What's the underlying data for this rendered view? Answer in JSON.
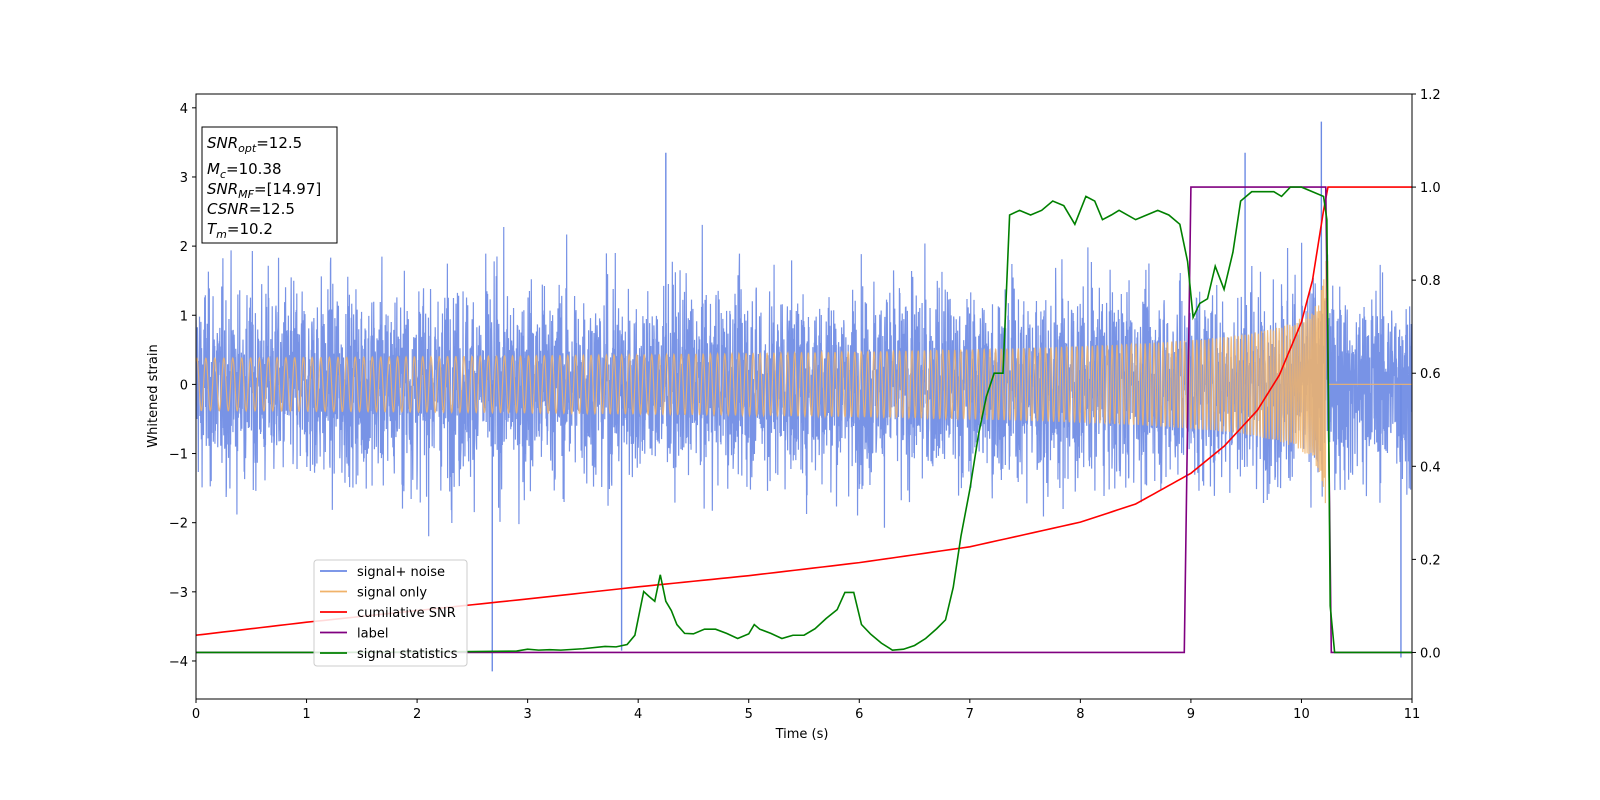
{
  "chart_data": {
    "type": "line",
    "xlabel": "Time (s)",
    "ylabel": "Whitened strain",
    "xlim": [
      0,
      11
    ],
    "ylim": [
      -4.55,
      4.2
    ],
    "y2lim": [
      -0.1,
      1.2
    ],
    "x_ticks": [
      "0",
      "1",
      "2",
      "3",
      "4",
      "5",
      "6",
      "7",
      "8",
      "9",
      "10",
      "11"
    ],
    "y_ticks": [
      "−4",
      "−3",
      "−2",
      "−1",
      "0",
      "1",
      "2",
      "3",
      "4"
    ],
    "y2_ticks": [
      "0.0",
      "0.2",
      "0.4",
      "0.6",
      "0.8",
      "1.0",
      "1.2"
    ],
    "grid": false,
    "legend_position": "lower-left",
    "info_box": [
      {
        "symbol": "SNR",
        "sub": "opt",
        "value": "=12.5"
      },
      {
        "symbol": "M",
        "sub": "c",
        "value": "=10.38"
      },
      {
        "symbol": "SNR",
        "sub": "MF",
        "value": "=[14.97]"
      },
      {
        "symbol": "CSNR",
        "sub": "",
        "value": "=12.5"
      },
      {
        "symbol": "T",
        "sub": "m",
        "value": "=10.2"
      }
    ],
    "series": [
      {
        "name": "signal+ noise",
        "axis": "left",
        "color": "#6c8ae4",
        "kind": "noise",
        "sigma": 0.95,
        "span": [
          0,
          11
        ],
        "peaks": [
          [
            10.18,
            3.8
          ],
          [
            2.68,
            -4.15
          ],
          [
            10.9,
            -3.95
          ],
          [
            3.85,
            -3.85
          ],
          [
            9.49,
            3.35
          ],
          [
            4.25,
            3.35
          ]
        ]
      },
      {
        "name": "signal only",
        "axis": "left",
        "color": "#f0b36a",
        "kind": "chirp",
        "merger_time": 10.22,
        "end_time": 10.24,
        "peak_amplitude": 2.0
      },
      {
        "name": "cumilative SNR",
        "axis": "right",
        "color": "#ff0000",
        "x": [
          0,
          1,
          2,
          3,
          4,
          5,
          6,
          7,
          8,
          8.5,
          9,
          9.3,
          9.6,
          9.8,
          10,
          10.1,
          10.2,
          10.24,
          11
        ],
        "y": [
          0.037,
          0.065,
          0.09,
          0.115,
          0.141,
          0.165,
          0.193,
          0.227,
          0.28,
          0.319,
          0.385,
          0.443,
          0.52,
          0.596,
          0.71,
          0.8,
          0.95,
          1.0,
          1.0
        ]
      },
      {
        "name": "label",
        "axis": "right",
        "color": "#800080",
        "x": [
          0,
          8.94,
          9.0,
          10.22,
          10.27,
          11
        ],
        "y": [
          0,
          0,
          1,
          1,
          0,
          0
        ]
      },
      {
        "name": "signal statistics",
        "axis": "right",
        "color": "#008000",
        "x": [
          0,
          1,
          2,
          2.5,
          2.9,
          3.0,
          3.1,
          3.2,
          3.3,
          3.5,
          3.7,
          3.8,
          3.9,
          3.97,
          4.05,
          4.1,
          4.15,
          4.2,
          4.25,
          4.3,
          4.35,
          4.42,
          4.5,
          4.6,
          4.7,
          4.8,
          4.9,
          5.0,
          5.05,
          5.1,
          5.2,
          5.3,
          5.4,
          5.5,
          5.6,
          5.7,
          5.8,
          5.87,
          5.95,
          6.02,
          6.1,
          6.2,
          6.3,
          6.4,
          6.5,
          6.6,
          6.7,
          6.78,
          6.85,
          6.92,
          7.0,
          7.08,
          7.15,
          7.22,
          7.3,
          7.36,
          7.45,
          7.55,
          7.65,
          7.75,
          7.85,
          7.95,
          8.05,
          8.13,
          8.2,
          8.28,
          8.35,
          8.5,
          8.6,
          8.7,
          8.8,
          8.9,
          8.97,
          9.02,
          9.08,
          9.15,
          9.22,
          9.3,
          9.38,
          9.45,
          9.55,
          9.65,
          9.75,
          9.82,
          9.9,
          10.0,
          10.1,
          10.2,
          10.23,
          10.26,
          10.3,
          10.4,
          11.0
        ],
        "y": [
          0.0,
          0.0,
          0.001,
          0.002,
          0.003,
          0.007,
          0.005,
          0.006,
          0.005,
          0.008,
          0.013,
          0.012,
          0.017,
          0.037,
          0.131,
          0.12,
          0.11,
          0.167,
          0.11,
          0.09,
          0.06,
          0.041,
          0.04,
          0.05,
          0.05,
          0.041,
          0.03,
          0.04,
          0.06,
          0.05,
          0.041,
          0.03,
          0.037,
          0.037,
          0.051,
          0.073,
          0.092,
          0.129,
          0.129,
          0.06,
          0.04,
          0.02,
          0.005,
          0.007,
          0.015,
          0.03,
          0.051,
          0.07,
          0.14,
          0.25,
          0.35,
          0.47,
          0.55,
          0.6,
          0.6,
          0.94,
          0.95,
          0.94,
          0.95,
          0.97,
          0.96,
          0.92,
          0.98,
          0.97,
          0.93,
          0.94,
          0.95,
          0.93,
          0.94,
          0.95,
          0.94,
          0.92,
          0.84,
          0.72,
          0.75,
          0.76,
          0.83,
          0.78,
          0.86,
          0.97,
          0.99,
          0.99,
          0.99,
          0.98,
          1.0,
          1.0,
          0.99,
          0.98,
          0.93,
          0.1,
          0.0,
          0.0,
          0.0
        ]
      }
    ]
  }
}
